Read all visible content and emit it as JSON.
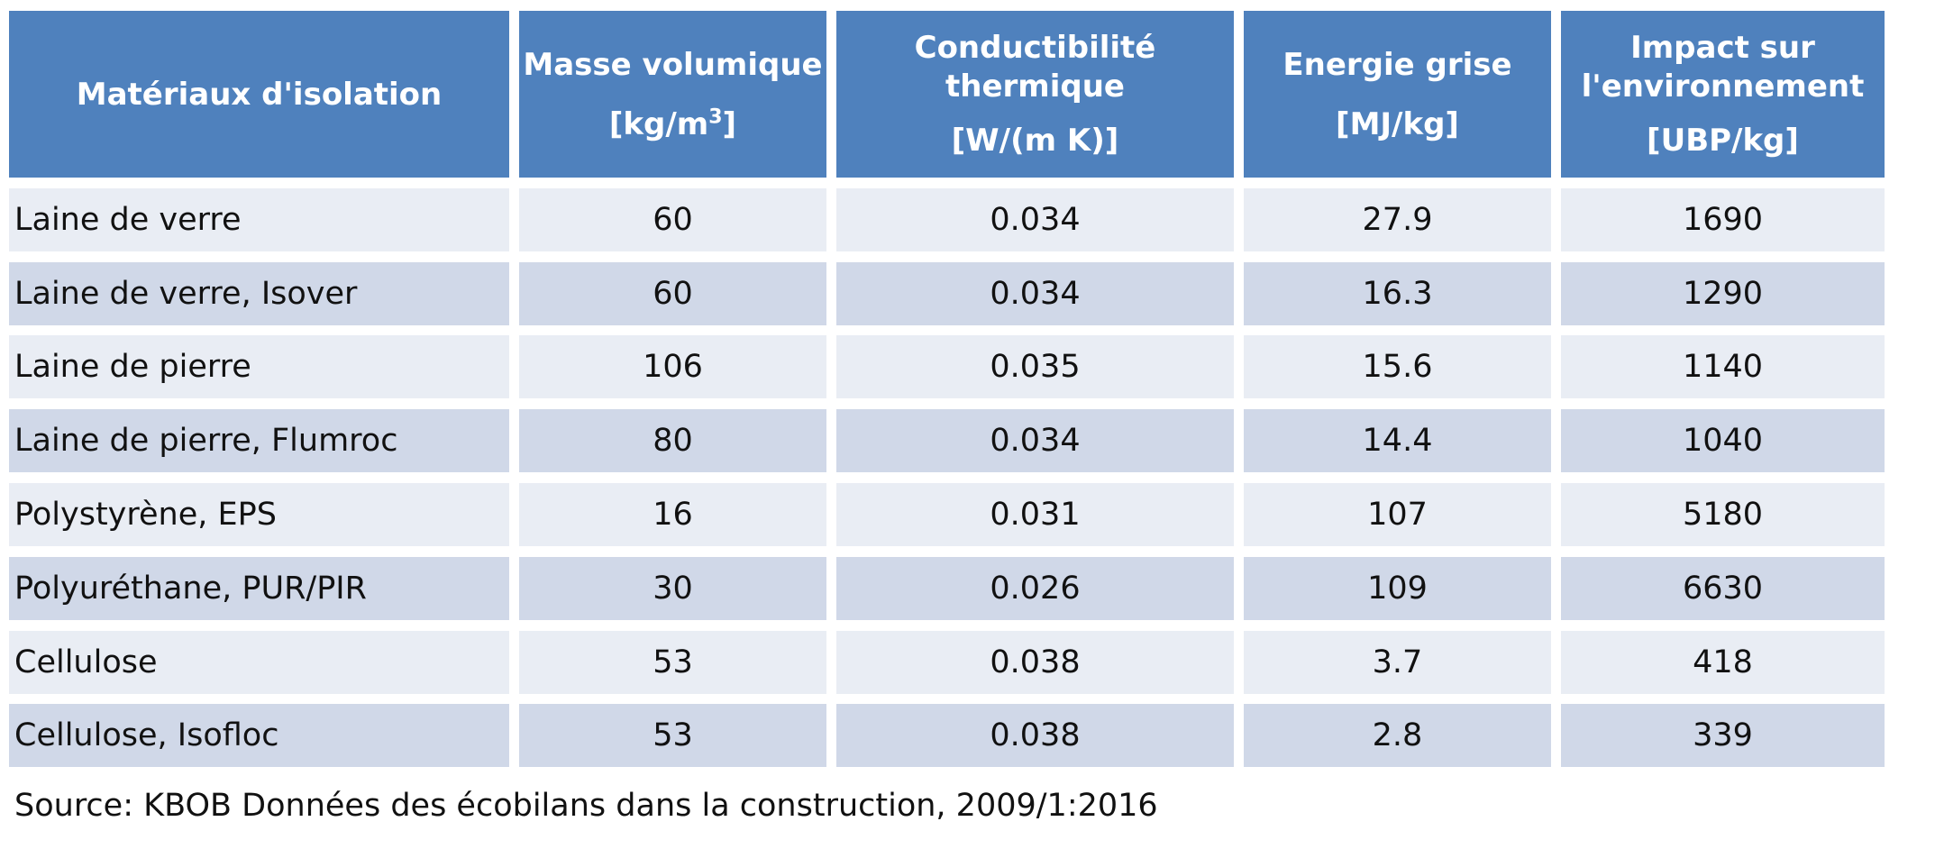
{
  "table": {
    "headers": [
      {
        "lines": [
          "Matériaux d'isolation"
        ],
        "unit": ""
      },
      {
        "lines": [
          "Masse volumique"
        ],
        "unit": "[kg/m",
        "unit_sup": "3",
        "unit_end": "]"
      },
      {
        "lines": [
          "Conductibilité",
          "thermique"
        ],
        "unit": "[W/(m K)]"
      },
      {
        "lines": [
          "Energie grise"
        ],
        "unit": "[MJ/kg]"
      },
      {
        "lines": [
          "Impact sur",
          "l'environnement"
        ],
        "unit": "[UBP/kg]"
      }
    ],
    "rows": [
      [
        "Laine de verre",
        "60",
        "0.034",
        "27.9",
        "1690"
      ],
      [
        "Laine de verre, Isover",
        "60",
        "0.034",
        "16.3",
        "1290"
      ],
      [
        "Laine de pierre",
        "106",
        "0.035",
        "15.6",
        "1140"
      ],
      [
        "Laine de pierre, Flumroc",
        "80",
        "0.034",
        "14.4",
        "1040"
      ],
      [
        "Polystyrène, EPS",
        "16",
        "0.031",
        "107",
        "5180"
      ],
      [
        "Polyuréthane, PUR/PIR",
        "30",
        "0.026",
        "109",
        "6630"
      ],
      [
        "Cellulose",
        "53",
        "0.038",
        "3.7",
        "418"
      ],
      [
        "Cellulose, Isofloc",
        "53",
        "0.038",
        "2.8",
        "339"
      ]
    ]
  },
  "source": "Source: KBOB Données des écobilans dans la construction, 2009/1:2016",
  "colors": {
    "header_bg": "#4f81bd",
    "header_text": "#ffffff",
    "row_light": "#e9edf4",
    "row_dark": "#d0d8e8"
  }
}
